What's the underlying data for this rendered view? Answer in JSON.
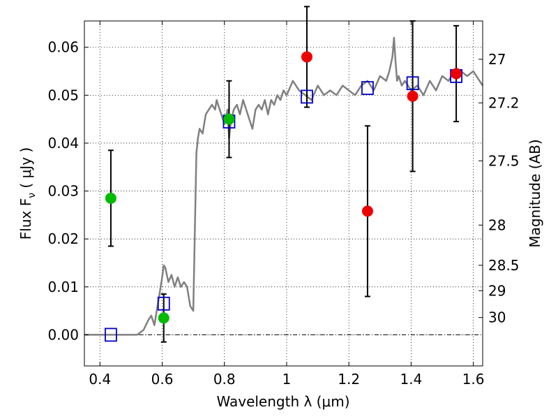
{
  "chart_data": {
    "type": "scatter",
    "xlabel": "Wavelength  λ (μm)",
    "ylabel": "Flux  F",
    "ylabel_sub": "ν",
    "ylabel_unit": " ( μJy )",
    "ylabel_right": "Magnitude (AB)",
    "xlim": [
      0.35,
      1.63
    ],
    "ylim": [
      -0.0065,
      0.0655
    ],
    "grid": true,
    "x_ticks": [
      0.4,
      0.6,
      0.8,
      1.0,
      1.2,
      1.4,
      1.6
    ],
    "x_tick_labels": [
      "0.4",
      "0.6",
      "0.8",
      "1",
      "1.2",
      "1.4",
      "1.6"
    ],
    "y_ticks": [
      0.0,
      0.01,
      0.02,
      0.03,
      0.04,
      0.05,
      0.06
    ],
    "y_tick_labels": [
      "0.00",
      "0.01",
      "0.02",
      "0.03",
      "0.04",
      "0.05",
      "0.06"
    ],
    "right_ticks": [
      {
        "flux": 0.0575,
        "label": "27"
      },
      {
        "flux": 0.0484,
        "label": "27.2"
      },
      {
        "flux": 0.0363,
        "label": "27.5"
      },
      {
        "flux": 0.0229,
        "label": "28"
      },
      {
        "flux": 0.0145,
        "label": "28.5"
      },
      {
        "flux": 0.0092,
        "label": "29"
      },
      {
        "flux": 0.0036,
        "label": "30"
      }
    ],
    "series": [
      {
        "marker": "line",
        "color": "#808080",
        "x": [
          0.35,
          0.52,
          0.54,
          0.555,
          0.565,
          0.575,
          0.585,
          0.59,
          0.595,
          0.6,
          0.605,
          0.61,
          0.62,
          0.63,
          0.64,
          0.65,
          0.66,
          0.67,
          0.68,
          0.69,
          0.7,
          0.705,
          0.71,
          0.715,
          0.72,
          0.73,
          0.74,
          0.75,
          0.76,
          0.77,
          0.775,
          0.78,
          0.79,
          0.8,
          0.81,
          0.815,
          0.82,
          0.83,
          0.84,
          0.85,
          0.86,
          0.87,
          0.88,
          0.89,
          0.9,
          0.91,
          0.92,
          0.93,
          0.94,
          0.95,
          0.96,
          0.97,
          0.98,
          0.99,
          1.0,
          1.02,
          1.04,
          1.06,
          1.08,
          1.1,
          1.12,
          1.14,
          1.16,
          1.18,
          1.2,
          1.22,
          1.24,
          1.26,
          1.28,
          1.3,
          1.32,
          1.33,
          1.34,
          1.345,
          1.35,
          1.355,
          1.36,
          1.37,
          1.38,
          1.4,
          1.42,
          1.44,
          1.46,
          1.48,
          1.5,
          1.52,
          1.54,
          1.56,
          1.58,
          1.6,
          1.62,
          1.63
        ],
        "y": [
          0.0,
          0.0,
          0.001,
          0.003,
          0.004,
          0.002,
          0.006,
          0.008,
          0.01,
          0.012,
          0.0145,
          0.014,
          0.011,
          0.0125,
          0.01,
          0.012,
          0.01,
          0.011,
          0.01,
          0.006,
          0.005,
          0.022,
          0.038,
          0.041,
          0.043,
          0.042,
          0.046,
          0.047,
          0.048,
          0.047,
          0.049,
          0.048,
          0.046,
          0.044,
          0.047,
          0.041,
          0.044,
          0.047,
          0.048,
          0.046,
          0.049,
          0.047,
          0.045,
          0.043,
          0.047,
          0.048,
          0.047,
          0.049,
          0.046,
          0.049,
          0.048,
          0.05,
          0.049,
          0.051,
          0.05,
          0.053,
          0.051,
          0.05,
          0.049,
          0.052,
          0.05,
          0.051,
          0.05,
          0.052,
          0.051,
          0.05,
          0.052,
          0.053,
          0.051,
          0.054,
          0.053,
          0.055,
          0.058,
          0.062,
          0.057,
          0.053,
          0.054,
          0.052,
          0.053,
          0.051,
          0.052,
          0.05,
          0.053,
          0.051,
          0.054,
          0.053,
          0.055,
          0.055,
          0.054,
          0.055,
          0.053,
          0.052
        ]
      },
      {
        "marker": "square",
        "color": "#0000cc",
        "x": [
          0.435,
          0.605,
          0.815,
          1.065,
          1.26,
          1.405,
          1.545
        ],
        "y": [
          0.0,
          0.0065,
          0.0445,
          0.0497,
          0.0515,
          0.0525,
          0.054
        ]
      },
      {
        "marker": "circle",
        "color": "#00bb00",
        "x": [
          0.435,
          0.605,
          0.815
        ],
        "y": [
          0.0285,
          0.0035,
          0.045
        ],
        "err": [
          0.01,
          0.005,
          0.008
        ]
      },
      {
        "marker": "circle",
        "color": "#ee0000",
        "x": [
          1.065,
          1.26,
          1.405,
          1.545
        ],
        "y": [
          0.058,
          0.0258,
          0.0498,
          0.0545
        ],
        "err": [
          0.0105,
          0.0178,
          0.0157,
          0.01
        ]
      }
    ]
  }
}
